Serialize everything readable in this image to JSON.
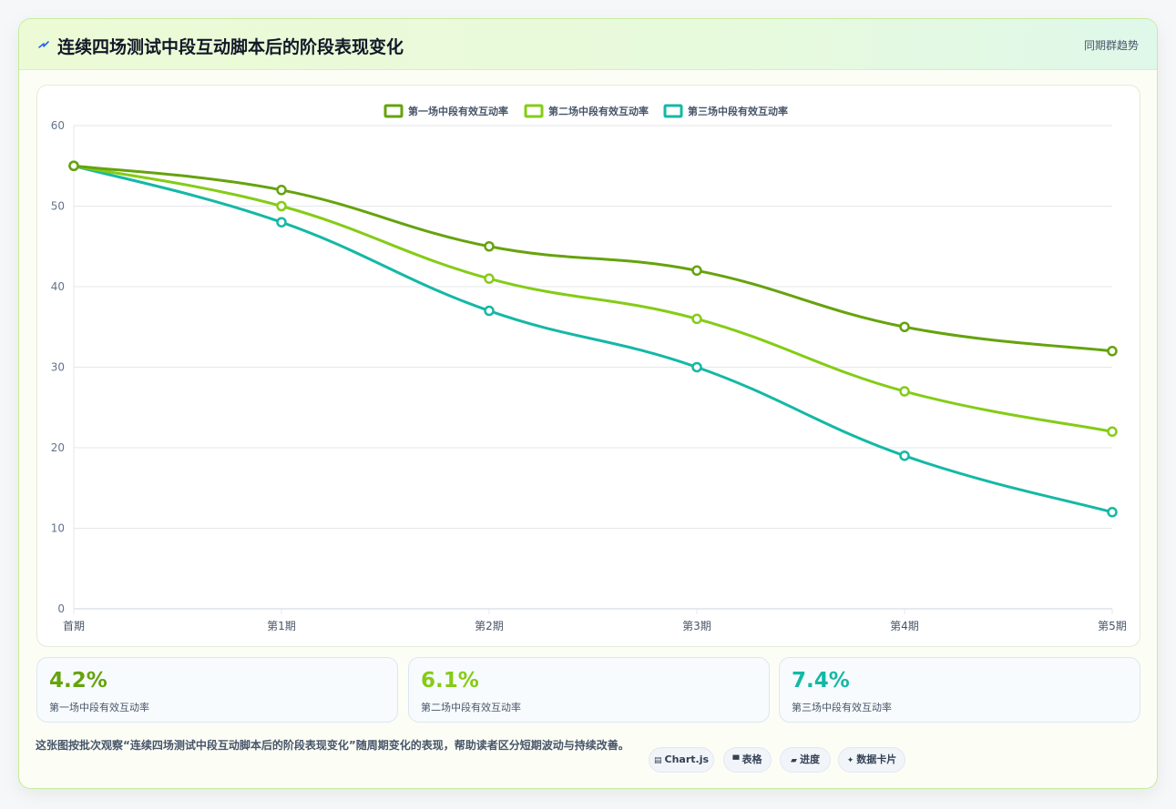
{
  "header": {
    "icon": "lightning-icon",
    "title": "连续四场测试中段互动脚本后的阶段表现变化",
    "tag": "同期群趋势"
  },
  "chart_data": {
    "type": "line",
    "categories": [
      "首期",
      "第1期",
      "第2期",
      "第3期",
      "第4期",
      "第5期"
    ],
    "series": [
      {
        "name": "第一场中段有效互动率",
        "color": "#65a30d",
        "values": [
          55,
          52,
          45,
          42,
          35,
          32
        ]
      },
      {
        "name": "第二场中段有效互动率",
        "color": "#84cc16",
        "values": [
          55,
          50,
          41,
          36,
          27,
          22
        ]
      },
      {
        "name": "第三场中段有效互动率",
        "color": "#14b8a6",
        "values": [
          55,
          48,
          37,
          30,
          19,
          12
        ]
      }
    ],
    "ylim": [
      0,
      60
    ],
    "yticks": [
      0,
      10,
      20,
      30,
      40,
      50,
      60
    ],
    "grid": true,
    "legend": "top-center",
    "xlabel": "",
    "ylabel": ""
  },
  "stats": [
    {
      "value": "4.2%",
      "label": "第一场中段有效互动率",
      "color": "#65a30d"
    },
    {
      "value": "6.1%",
      "label": "第二场中段有效互动率",
      "color": "#84cc16"
    },
    {
      "value": "7.4%",
      "label": "第三场中段有效互动率",
      "color": "#14b8a6"
    }
  ],
  "footer": {
    "note": "这张图按批次观察“连续四场测试中段互动脚本后的阶段表现变化”随周期变化的表现，帮助读者区分短期波动与持续改善。",
    "chips": [
      {
        "icon": "chart-icon",
        "glyph": "▤",
        "label": "Chart.js"
      },
      {
        "icon": "table-icon",
        "glyph": "▀",
        "label": "表格"
      },
      {
        "icon": "progress-icon",
        "glyph": "▰",
        "label": "进度"
      },
      {
        "icon": "sparkle-icon",
        "glyph": "✦",
        "label": "数据卡片"
      }
    ]
  }
}
